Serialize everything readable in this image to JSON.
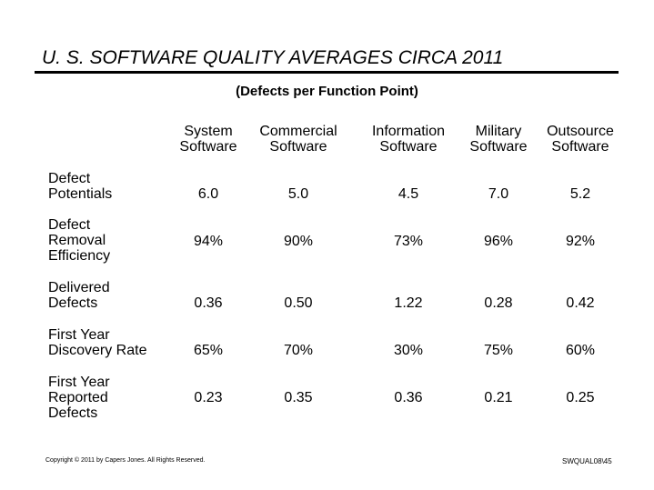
{
  "title": "U. S. SOFTWARE QUALITY AVERAGES CIRCA 2011",
  "subtitle": "(Defects per Function Point)",
  "columns": [
    {
      "line1": "System",
      "line2": "Software"
    },
    {
      "line1": "Commercial",
      "line2": "Software"
    },
    {
      "line1": "Information",
      "line2": "Software"
    },
    {
      "line1": "Military",
      "line2": "Software"
    },
    {
      "line1": "Outsource",
      "line2": "Software"
    }
  ],
  "rows": [
    {
      "label": [
        "Defect",
        "Potentials"
      ],
      "values": [
        "6.0",
        "5.0",
        "4.5",
        "7.0",
        "5.2"
      ]
    },
    {
      "label": [
        "Defect",
        "Removal",
        "Efficiency"
      ],
      "values": [
        "94%",
        "90%",
        "73%",
        "96%",
        "92%"
      ]
    },
    {
      "label": [
        "Delivered",
        "Defects"
      ],
      "values": [
        "0.36",
        "0.50",
        "1.22",
        "0.28",
        "0.42"
      ]
    },
    {
      "label": [
        "First Year",
        "Discovery Rate"
      ],
      "values": [
        "65%",
        "70%",
        "30%",
        "75%",
        "60%"
      ]
    },
    {
      "label": [
        "First Year",
        "Reported",
        "Defects"
      ],
      "values": [
        "0.23",
        "0.35",
        "0.36",
        "0.21",
        "0.25"
      ]
    }
  ],
  "footer": {
    "copyright": "Copyright © 2011 by Capers Jones. All Rights Reserved.",
    "code": "SWQUAL08\\45"
  }
}
